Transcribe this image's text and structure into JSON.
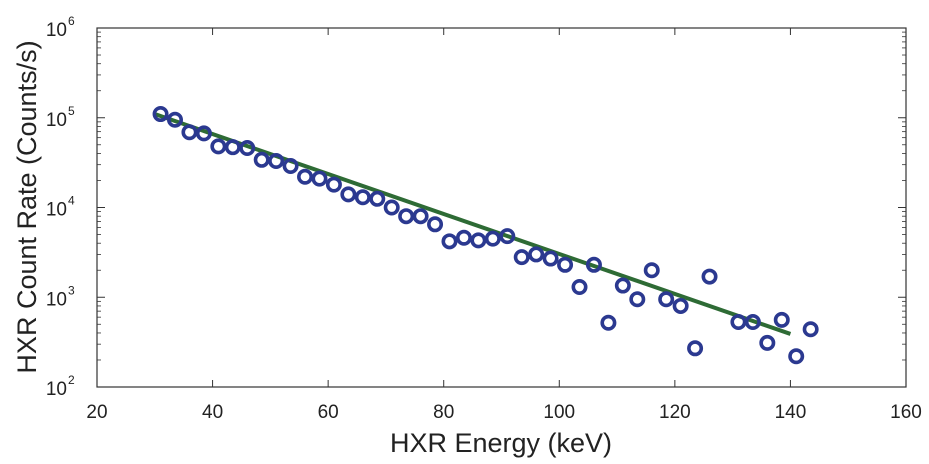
{
  "chart_data": {
    "type": "scatter",
    "title": "",
    "xlabel": "HXR Energy (keV)",
    "ylabel": "HXR Count Rate (Counts/s)",
    "xlim": [
      20,
      160
    ],
    "ylim": [
      100,
      1000000
    ],
    "y_scale": "log",
    "grid": false,
    "legend": "none",
    "x_ticks": [
      "20",
      "40",
      "60",
      "80",
      "100",
      "120",
      "140",
      "160"
    ],
    "y_ticks": [
      {
        "base": "10",
        "exp": "2",
        "value": 100
      },
      {
        "base": "10",
        "exp": "3",
        "value": 1000
      },
      {
        "base": "10",
        "exp": "4",
        "value": 10000
      },
      {
        "base": "10",
        "exp": "5",
        "value": 100000
      },
      {
        "base": "10",
        "exp": "6",
        "value": 1000000
      }
    ],
    "series": [
      {
        "type": "scatter",
        "marker": "circle-open",
        "color": "#2b3990",
        "x": [
          31,
          33.5,
          36,
          38.5,
          41,
          43.5,
          46,
          48.5,
          51,
          53.5,
          56,
          58.5,
          61,
          63.5,
          66,
          68.5,
          71,
          73.5,
          76,
          78.5,
          81,
          83.5,
          86,
          88.5,
          91,
          93.5,
          96,
          98.5,
          101,
          103.5,
          106,
          108.5,
          111,
          113.5,
          116,
          118.5,
          121,
          123.5,
          126,
          131,
          133.5,
          136,
          138.5,
          141,
          143.5
        ],
        "y": [
          110000,
          95000,
          69000,
          67000,
          48000,
          47000,
          46000,
          34000,
          33000,
          29000,
          22000,
          21000,
          18000,
          14000,
          13000,
          12500,
          10000,
          8000,
          8000,
          6500,
          4200,
          4600,
          4300,
          4500,
          4800,
          2800,
          3000,
          2700,
          2300,
          1300,
          2300,
          520,
          1350,
          950,
          2000,
          950,
          800,
          270,
          1700,
          530,
          530,
          310,
          560,
          220,
          440
        ]
      },
      {
        "type": "line",
        "color": "#2e6b35",
        "x": [
          30,
          140
        ],
        "y": [
          110000,
          390
        ]
      }
    ]
  }
}
